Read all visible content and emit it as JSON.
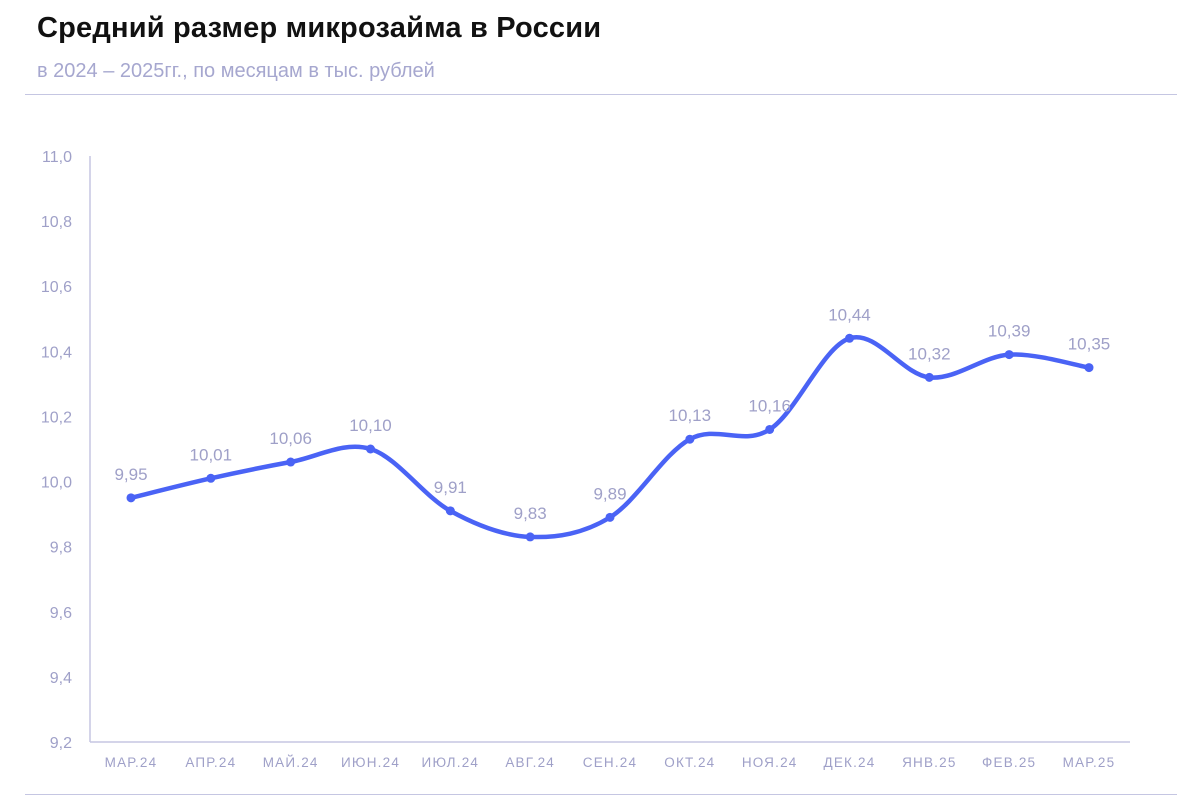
{
  "header": {
    "title": "Средний размер микрозайма в России",
    "subtitle": "в 2024 – 2025гг., по месяцам в тыс. рублей"
  },
  "colors": {
    "series": "#4a63f5",
    "axis": "#c5c6e2",
    "label": "#9fa0c8"
  },
  "chart_data": {
    "type": "line",
    "title": "Средний размер микрозайма в России",
    "subtitle": "в 2024 – 2025гг., по месяцам в тыс. рублей",
    "xlabel": "",
    "ylabel": "",
    "categories": [
      "МАР.24",
      "АПР.24",
      "МАЙ.24",
      "ИЮН.24",
      "ИЮЛ.24",
      "АВГ.24",
      "СЕН.24",
      "ОКТ.24",
      "НОЯ.24",
      "ДЕК.24",
      "ЯНВ.25",
      "ФЕВ.25",
      "МАР.25"
    ],
    "series": [
      {
        "values": [
          9.95,
          10.01,
          10.06,
          10.1,
          9.91,
          9.83,
          9.89,
          10.13,
          10.16,
          10.44,
          10.32,
          10.39,
          10.35
        ],
        "labels": [
          "9,95",
          "10,01",
          "10,06",
          "10,10",
          "9,91",
          "9,83",
          "9,89",
          "10,13",
          "10,16",
          "10,44",
          "10,32",
          "10,39",
          "10,35"
        ]
      }
    ],
    "ylim": [
      9.2,
      11.0
    ],
    "yticks": [
      9.2,
      9.4,
      9.6,
      9.8,
      10.0,
      10.2,
      10.4,
      10.6,
      10.8,
      11.0
    ],
    "ytick_labels": [
      "9,2",
      "9,4",
      "9,6",
      "9,8",
      "10,0",
      "10,2",
      "10,4",
      "10,6",
      "10,8",
      "11,0"
    ],
    "grid": false,
    "legend": "none",
    "smooth": true
  }
}
